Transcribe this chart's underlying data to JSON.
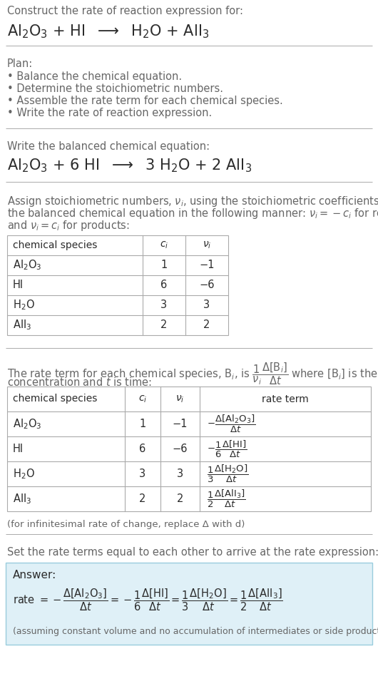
{
  "bg_color": "#ffffff",
  "text_color": "#2b2b2b",
  "gray_text": "#666666",
  "light_gray": "#aaaaaa",
  "table_border": "#aaaaaa",
  "answer_bg": "#dff0f7",
  "answer_border": "#99ccdd",
  "title_line1": "Construct the rate of reaction expression for:",
  "plan_header": "Plan:",
  "plan_items": [
    "• Balance the chemical equation.",
    "• Determine the stoichiometric numbers.",
    "• Assemble the rate term for each chemical species.",
    "• Write the rate of reaction expression."
  ],
  "balanced_header": "Write the balanced chemical equation:",
  "set_rate_text": "Set the rate terms equal to each other to arrive at the rate expression:",
  "answer_label": "Answer:",
  "assuming_note": "(assuming constant volume and no accumulation of intermediates or side products)",
  "infinitesimal_note": "(for infinitesimal rate of change, replace Δ with d)",
  "species": [
    "Al₂O₃",
    "HI",
    "H₂O",
    "AlI₃"
  ],
  "ci_vals": [
    "1",
    "6",
    "3",
    "2"
  ],
  "nu_vals": [
    "−1",
    "−6",
    "3",
    "2"
  ]
}
